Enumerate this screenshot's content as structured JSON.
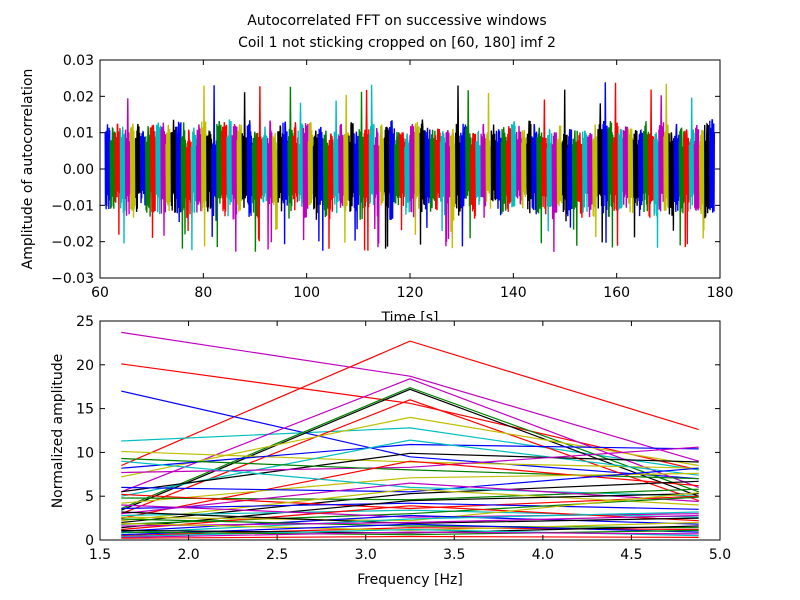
{
  "title_line1": "Autocorrelated FFT on successive windows",
  "title_line2": "Coil 1 not sticking cropped on [60, 180] imf 2",
  "colors": [
    "#0000ff",
    "#008000",
    "#ff0000",
    "#00bfbf",
    "#bf00bf",
    "#bfbf00",
    "#000000"
  ],
  "chart_data": [
    {
      "type": "line",
      "xlabel": "Time [s]",
      "ylabel": "Amplitude of autocorrelation",
      "xlim": [
        60,
        180
      ],
      "ylim": [
        -0.03,
        0.03
      ],
      "xticks": [
        60,
        80,
        100,
        120,
        140,
        160,
        180
      ],
      "yticks": [
        -0.03,
        -0.02,
        -0.01,
        0.0,
        0.01,
        0.02,
        0.03
      ],
      "xtick_labels": [
        "60",
        "80",
        "100",
        "120",
        "140",
        "160",
        "180"
      ],
      "ytick_labels": [
        "−0.03",
        "−0.02",
        "−0.01",
        "0.00",
        "0.01",
        "0.02",
        "0.03"
      ],
      "window_start": 61,
      "window_end": 179,
      "window_count": 120,
      "typical_range": [
        -0.014,
        0.013
      ],
      "peak_max": 0.024,
      "peak_min": -0.023
    },
    {
      "type": "line",
      "xlabel": "Frequency [Hz]",
      "ylabel": "Normalized amplitude",
      "xlim": [
        1.5,
        5.0
      ],
      "ylim": [
        0,
        25
      ],
      "xticks": [
        1.5,
        2.0,
        2.5,
        3.0,
        3.5,
        4.0,
        4.5,
        5.0
      ],
      "yticks": [
        0,
        5,
        10,
        15,
        20,
        25
      ],
      "xtick_labels": [
        "1.5",
        "2.0",
        "2.5",
        "3.0",
        "3.5",
        "4.0",
        "4.5",
        "5.0"
      ],
      "ytick_labels": [
        "0",
        "5",
        "10",
        "15",
        "20",
        "25"
      ],
      "x": [
        1.62,
        3.25,
        4.88
      ],
      "series": [
        {
          "color": "#bf00bf",
          "values": [
            23.7,
            18.7,
            9.0
          ]
        },
        {
          "color": "#ff0000",
          "values": [
            20.1,
            15.6,
            8.0
          ]
        },
        {
          "color": "#ff0000",
          "values": [
            8.5,
            22.7,
            12.6
          ]
        },
        {
          "color": "#0000ff",
          "values": [
            17.0,
            9.5,
            7.0
          ]
        },
        {
          "color": "#00bfbf",
          "values": [
            11.3,
            12.8,
            8.0
          ]
        },
        {
          "color": "#008000",
          "values": [
            3.6,
            17.4,
            5.5
          ]
        },
        {
          "color": "#000000",
          "values": [
            3.4,
            17.2,
            5.0
          ]
        },
        {
          "color": "#bf00bf",
          "values": [
            5.5,
            18.4,
            6.0
          ]
        },
        {
          "color": "#ff0000",
          "values": [
            3.0,
            16.0,
            4.5
          ]
        },
        {
          "color": "#bfbf00",
          "values": [
            10.1,
            8.9,
            8.2
          ]
        },
        {
          "color": "#bfbf00",
          "values": [
            7.2,
            14.0,
            8.5
          ]
        },
        {
          "color": "#0000ff",
          "values": [
            8.2,
            10.9,
            10.4
          ]
        },
        {
          "color": "#00bfbf",
          "values": [
            5.0,
            11.4,
            7.4
          ]
        },
        {
          "color": "#000000",
          "values": [
            5.5,
            9.9,
            8.9
          ]
        },
        {
          "color": "#bf00bf",
          "values": [
            7.7,
            8.3,
            10.6
          ]
        },
        {
          "color": "#008000",
          "values": [
            9.3,
            8.0,
            7.0
          ]
        },
        {
          "color": "#ff0000",
          "values": [
            2.5,
            9.0,
            6.2
          ]
        },
        {
          "color": "#bfbf00",
          "values": [
            4.2,
            7.1,
            7.6
          ]
        },
        {
          "color": "#0000ff",
          "values": [
            6.0,
            5.5,
            8.2
          ]
        },
        {
          "color": "#000000",
          "values": [
            2.0,
            5.3,
            6.7
          ]
        },
        {
          "color": "#00bfbf",
          "values": [
            9.0,
            6.0,
            5.0
          ]
        },
        {
          "color": "#008000",
          "values": [
            4.8,
            4.6,
            5.8
          ]
        },
        {
          "color": "#bf00bf",
          "values": [
            3.0,
            6.5,
            4.4
          ]
        },
        {
          "color": "#ff0000",
          "values": [
            5.2,
            3.6,
            5.0
          ]
        },
        {
          "color": "#bfbf00",
          "values": [
            2.2,
            5.8,
            4.0
          ]
        },
        {
          "color": "#0000ff",
          "values": [
            3.6,
            4.2,
            3.5
          ]
        },
        {
          "color": "#000000",
          "values": [
            1.4,
            4.5,
            5.3
          ]
        },
        {
          "color": "#00bfbf",
          "values": [
            2.8,
            3.4,
            2.6
          ]
        },
        {
          "color": "#008000",
          "values": [
            1.8,
            3.0,
            4.9
          ]
        },
        {
          "color": "#bf00bf",
          "values": [
            4.0,
            2.6,
            3.0
          ]
        },
        {
          "color": "#ff0000",
          "values": [
            1.2,
            3.9,
            2.2
          ]
        },
        {
          "color": "#bfbf00",
          "values": [
            2.6,
            2.2,
            5.4
          ]
        },
        {
          "color": "#0000ff",
          "values": [
            1.0,
            2.8,
            1.8
          ]
        },
        {
          "color": "#000000",
          "values": [
            3.2,
            1.9,
            2.5
          ]
        },
        {
          "color": "#00bfbf",
          "values": [
            0.8,
            2.4,
            3.2
          ]
        },
        {
          "color": "#008000",
          "values": [
            2.4,
            1.6,
            1.4
          ]
        },
        {
          "color": "#bf00bf",
          "values": [
            1.6,
            2.0,
            2.8
          ]
        },
        {
          "color": "#ff0000",
          "values": [
            0.5,
            1.4,
            1.2
          ]
        },
        {
          "color": "#bfbf00",
          "values": [
            1.9,
            1.1,
            2.0
          ]
        },
        {
          "color": "#0000ff",
          "values": [
            0.6,
            1.8,
            0.9
          ]
        },
        {
          "color": "#000000",
          "values": [
            1.1,
            0.8,
            1.6
          ]
        },
        {
          "color": "#00bfbf",
          "values": [
            0.4,
            1.2,
            0.5
          ]
        },
        {
          "color": "#008000",
          "values": [
            0.9,
            0.6,
            1.1
          ]
        },
        {
          "color": "#bf00bf",
          "values": [
            0.3,
            0.9,
            0.7
          ]
        },
        {
          "color": "#ff0000",
          "values": [
            0.2,
            0.4,
            0.3
          ]
        }
      ]
    }
  ]
}
